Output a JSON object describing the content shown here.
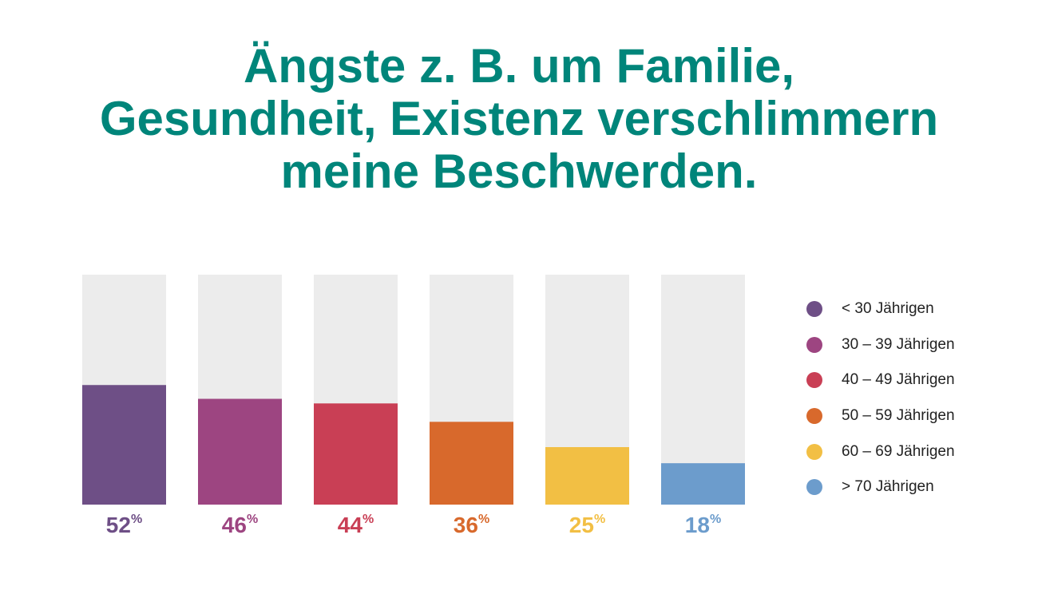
{
  "chart_data": {
    "type": "bar",
    "title_lines": [
      "Ängste z. B. um Familie,",
      "Gesundheit, Existenz verschlimmern",
      "meine Beschwerden."
    ],
    "categories": [
      "< 30 Jährigen",
      "30 – 39 Jährigen",
      "40 – 49 Jährigen",
      "50 – 59 Jährigen",
      "60 – 69 Jährigen",
      "> 70 Jährigen"
    ],
    "values": [
      52,
      46,
      44,
      36,
      25,
      18
    ],
    "value_labels": [
      "52",
      "46",
      "44",
      "36",
      "25",
      "18"
    ],
    "unit": "%",
    "colors": [
      "#6e4f86",
      "#9d4581",
      "#c93f55",
      "#d8692c",
      "#f2bf44",
      "#6c9ccc"
    ],
    "background_color": "#ececec",
    "ylim": [
      0,
      100
    ],
    "legend_position": "right",
    "grid": false
  }
}
